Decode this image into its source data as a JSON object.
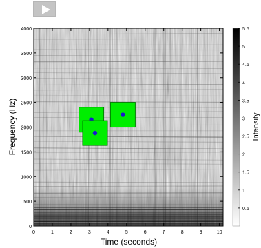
{
  "toolbar": {
    "play_icon": "play-icon"
  },
  "chart_data": {
    "type": "heatmap",
    "title": "",
    "xlabel": "Time (seconds)",
    "ylabel": "Frequency (Hz)",
    "xlim": [
      0,
      10.2
    ],
    "ylim": [
      0,
      4000
    ],
    "x_ticks": [
      0,
      1,
      2,
      3,
      4,
      5,
      6,
      7,
      8,
      9,
      10
    ],
    "y_ticks": [
      0,
      500,
      1000,
      1500,
      2000,
      2500,
      3000,
      3500,
      4000
    ],
    "colorbar": {
      "label": "Intensity",
      "range": [
        0,
        5.5
      ],
      "ticks": [
        0.5,
        1,
        1.5,
        2,
        2.5,
        3,
        3.5,
        4,
        4.5,
        5,
        5.5
      ],
      "colormap": "gray_reversed"
    },
    "markers": [
      {
        "x": 3.1,
        "y": 2150,
        "color": "#1a1acc",
        "box_color": "#00ee00"
      },
      {
        "x": 3.3,
        "y": 1880,
        "color": "#1a1acc",
        "box_color": "#00ee00"
      },
      {
        "x": 4.8,
        "y": 2250,
        "color": "#1a1acc",
        "box_color": "#00ee00"
      }
    ]
  }
}
